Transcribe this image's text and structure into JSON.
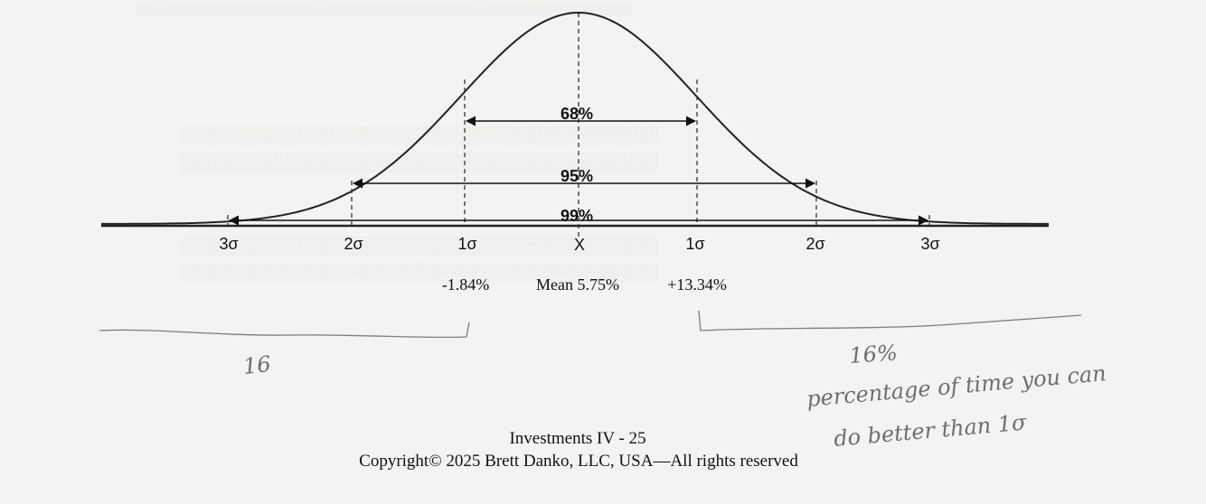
{
  "diagram": {
    "curve_label_center": "X",
    "sigma_labels": {
      "left_3": "3σ",
      "left_2": "2σ",
      "left_1": "1σ",
      "right_1": "1σ",
      "right_2": "2σ",
      "right_3": "3σ"
    },
    "ranges": {
      "one_sigma": "68%",
      "two_sigma": "95%",
      "three_sigma": "99%"
    },
    "values": {
      "minus_one_sigma": "-1.84%",
      "mean": "Mean 5.75%",
      "plus_one_sigma": "+13.34%"
    }
  },
  "handwriting": {
    "left_tail": "16",
    "right_tail": "16%",
    "note_line1": "percentage of time you can",
    "note_line2": "do better than 1σ"
  },
  "footer": {
    "page": "Investments IV - 25",
    "copyright": "Copyright© 2025 Brett Danko, LLC, USA—All rights reserved"
  }
}
